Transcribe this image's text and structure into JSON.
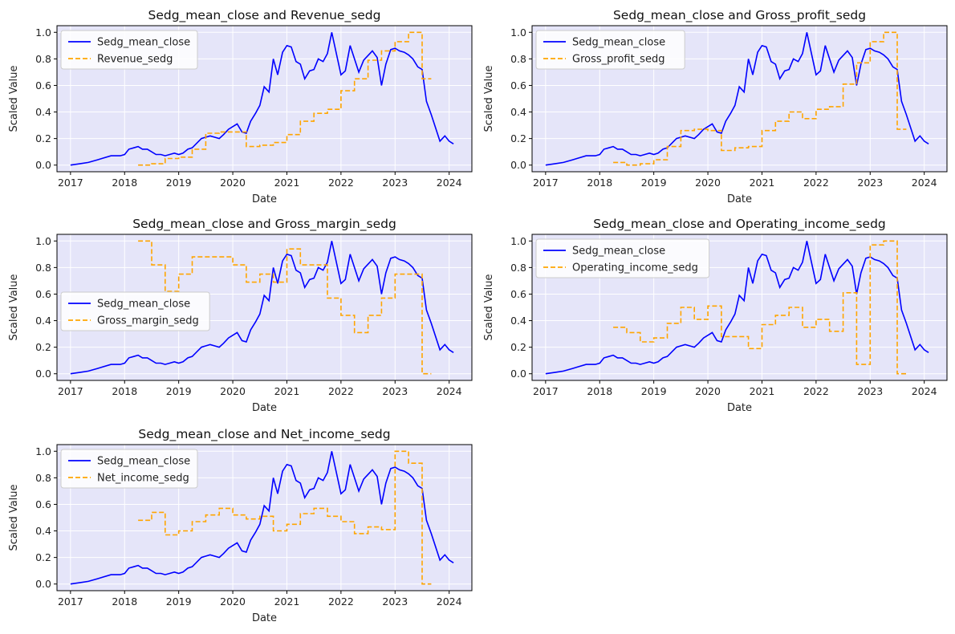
{
  "colors": {
    "blue": "#0000ff",
    "orange": "#ffa500",
    "axes_bg": "#e5e5f9",
    "grid": "#ffffff"
  },
  "x_ticks": [
    2017,
    2018,
    2019,
    2020,
    2021,
    2022,
    2023,
    2024
  ],
  "y_ticks": [
    "0.0",
    "0.2",
    "0.4",
    "0.6",
    "0.8",
    "1.0"
  ],
  "chart_data": [
    {
      "type": "line",
      "title": "Sedg_mean_close and Revenue_sedg",
      "xlabel": "Date",
      "ylabel": "Scaled Value",
      "xlim": [
        2016.75,
        2024.42
      ],
      "ylim": [
        -0.05,
        1.05
      ],
      "grid": true,
      "legend": "upper-left",
      "series": [
        {
          "name": "Sedg_mean_close",
          "style": "solid",
          "color": "#0000ff",
          "x": [
            2017.0,
            2017.17,
            2017.33,
            2017.5,
            2017.58,
            2017.75,
            2017.92,
            2018.0,
            2018.08,
            2018.17,
            2018.25,
            2018.33,
            2018.42,
            2018.5,
            2018.58,
            2018.67,
            2018.75,
            2018.92,
            2019.0,
            2019.08,
            2019.17,
            2019.25,
            2019.42,
            2019.58,
            2019.75,
            2019.83,
            2019.92,
            2020.08,
            2020.17,
            2020.25,
            2020.33,
            2020.42,
            2020.5,
            2020.58,
            2020.67,
            2020.75,
            2020.83,
            2020.92,
            2021.0,
            2021.08,
            2021.17,
            2021.25,
            2021.33,
            2021.42,
            2021.5,
            2021.58,
            2021.67,
            2021.75,
            2021.83,
            2021.92,
            2022.0,
            2022.08,
            2022.17,
            2022.33,
            2022.42,
            2022.58,
            2022.67,
            2022.75,
            2022.83,
            2022.92,
            2023.0,
            2023.08,
            2023.17,
            2023.25,
            2023.33,
            2023.42,
            2023.5,
            2023.58,
            2023.67,
            2023.83,
            2023.92,
            2024.0,
            2024.08
          ],
          "y": [
            0.0,
            0.01,
            0.02,
            0.04,
            0.05,
            0.07,
            0.07,
            0.08,
            0.12,
            0.13,
            0.14,
            0.12,
            0.12,
            0.1,
            0.08,
            0.08,
            0.07,
            0.09,
            0.08,
            0.09,
            0.12,
            0.13,
            0.2,
            0.22,
            0.2,
            0.23,
            0.27,
            0.31,
            0.25,
            0.24,
            0.33,
            0.39,
            0.45,
            0.59,
            0.55,
            0.8,
            0.68,
            0.85,
            0.9,
            0.89,
            0.78,
            0.76,
            0.65,
            0.71,
            0.72,
            0.8,
            0.78,
            0.84,
            1.0,
            0.83,
            0.68,
            0.71,
            0.9,
            0.7,
            0.79,
            0.86,
            0.81,
            0.6,
            0.76,
            0.87,
            0.88,
            0.86,
            0.85,
            0.83,
            0.8,
            0.74,
            0.72,
            0.48,
            0.38,
            0.18,
            0.22,
            0.18,
            0.16
          ]
        },
        {
          "name": "Revenue_sedg",
          "style": "dashed",
          "color": "#ffa500",
          "step": true,
          "x": [
            2018.25,
            2018.5,
            2018.75,
            2019.0,
            2019.25,
            2019.5,
            2019.75,
            2020.0,
            2020.25,
            2020.5,
            2020.75,
            2021.0,
            2021.25,
            2021.5,
            2021.75,
            2022.0,
            2022.25,
            2022.5,
            2022.75,
            2023.0,
            2023.25,
            2023.5,
            2023.67
          ],
          "y": [
            0.0,
            0.01,
            0.05,
            0.06,
            0.12,
            0.24,
            0.25,
            0.25,
            0.14,
            0.15,
            0.17,
            0.23,
            0.33,
            0.39,
            0.42,
            0.56,
            0.65,
            0.79,
            0.86,
            0.93,
            1.0,
            0.65,
            0.65
          ]
        }
      ]
    },
    {
      "type": "line",
      "title": "Sedg_mean_close and Gross_profit_sedg",
      "xlabel": "Date",
      "ylabel": "Scaled Value",
      "xlim": [
        2016.75,
        2024.42
      ],
      "ylim": [
        -0.05,
        1.05
      ],
      "grid": true,
      "legend": "upper-left",
      "series": [
        {
          "name": "Sedg_mean_close",
          "style": "solid",
          "color": "#0000ff",
          "ref": "sedg"
        },
        {
          "name": "Gross_profit_sedg",
          "style": "dashed",
          "color": "#ffa500",
          "step": true,
          "x": [
            2018.25,
            2018.5,
            2018.75,
            2019.0,
            2019.25,
            2019.5,
            2019.75,
            2020.0,
            2020.25,
            2020.5,
            2020.75,
            2021.0,
            2021.25,
            2021.5,
            2021.75,
            2022.0,
            2022.25,
            2022.5,
            2022.75,
            2023.0,
            2023.25,
            2023.5,
            2023.67
          ],
          "y": [
            0.02,
            0.0,
            0.01,
            0.04,
            0.14,
            0.26,
            0.27,
            0.26,
            0.11,
            0.13,
            0.14,
            0.26,
            0.33,
            0.4,
            0.35,
            0.42,
            0.44,
            0.61,
            0.77,
            0.93,
            1.0,
            0.27,
            0.27
          ]
        }
      ]
    },
    {
      "type": "line",
      "title": "Sedg_mean_close and Gross_margin_sedg",
      "xlabel": "Date",
      "ylabel": "Scaled Value",
      "xlim": [
        2016.75,
        2024.42
      ],
      "ylim": [
        -0.05,
        1.05
      ],
      "grid": true,
      "legend": "center-left",
      "series": [
        {
          "name": "Sedg_mean_close",
          "style": "solid",
          "color": "#0000ff",
          "ref": "sedg"
        },
        {
          "name": "Gross_margin_sedg",
          "style": "dashed",
          "color": "#ffa500",
          "step": true,
          "x": [
            2018.25,
            2018.5,
            2018.75,
            2019.0,
            2019.25,
            2019.5,
            2019.75,
            2020.0,
            2020.25,
            2020.5,
            2020.75,
            2021.0,
            2021.25,
            2021.5,
            2021.75,
            2022.0,
            2022.25,
            2022.5,
            2022.75,
            2023.0,
            2023.25,
            2023.5,
            2023.67
          ],
          "y": [
            1.0,
            0.82,
            0.62,
            0.75,
            0.88,
            0.88,
            0.88,
            0.82,
            0.69,
            0.75,
            0.69,
            0.94,
            0.82,
            0.82,
            0.57,
            0.44,
            0.31,
            0.44,
            0.57,
            0.75,
            0.75,
            0.0,
            0.0
          ]
        }
      ]
    },
    {
      "type": "line",
      "title": "Sedg_mean_close and Operating_income_sedg",
      "xlabel": "Date",
      "ylabel": "Scaled Value",
      "xlim": [
        2016.75,
        2024.42
      ],
      "ylim": [
        -0.05,
        1.05
      ],
      "grid": true,
      "legend": "upper-left",
      "series": [
        {
          "name": "Sedg_mean_close",
          "style": "solid",
          "color": "#0000ff",
          "ref": "sedg"
        },
        {
          "name": "Operating_income_sedg",
          "style": "dashed",
          "color": "#ffa500",
          "step": true,
          "x": [
            2018.25,
            2018.5,
            2018.75,
            2019.0,
            2019.25,
            2019.5,
            2019.75,
            2020.0,
            2020.25,
            2020.5,
            2020.75,
            2021.0,
            2021.25,
            2021.5,
            2021.75,
            2022.0,
            2022.25,
            2022.5,
            2022.75,
            2023.0,
            2023.25,
            2023.5,
            2023.67
          ],
          "y": [
            0.35,
            0.31,
            0.24,
            0.27,
            0.38,
            0.5,
            0.41,
            0.51,
            0.28,
            0.28,
            0.19,
            0.37,
            0.44,
            0.5,
            0.35,
            0.41,
            0.32,
            0.61,
            0.07,
            0.97,
            1.0,
            0.0,
            0.0
          ]
        }
      ]
    },
    {
      "type": "line",
      "title": "Sedg_mean_close and Net_income_sedg",
      "xlabel": "Date",
      "ylabel": "Scaled Value",
      "xlim": [
        2016.75,
        2024.42
      ],
      "ylim": [
        -0.05,
        1.05
      ],
      "grid": true,
      "legend": "upper-left",
      "series": [
        {
          "name": "Sedg_mean_close",
          "style": "solid",
          "color": "#0000ff",
          "ref": "sedg"
        },
        {
          "name": "Net_income_sedg",
          "style": "dashed",
          "color": "#ffa500",
          "step": true,
          "x": [
            2018.25,
            2018.5,
            2018.75,
            2019.0,
            2019.25,
            2019.5,
            2019.75,
            2020.0,
            2020.25,
            2020.5,
            2020.75,
            2021.0,
            2021.25,
            2021.5,
            2021.75,
            2022.0,
            2022.25,
            2022.5,
            2022.75,
            2023.0,
            2023.25,
            2023.5,
            2023.67
          ],
          "y": [
            0.48,
            0.54,
            0.37,
            0.4,
            0.47,
            0.52,
            0.57,
            0.52,
            0.49,
            0.51,
            0.4,
            0.45,
            0.53,
            0.57,
            0.51,
            0.47,
            0.38,
            0.43,
            0.41,
            1.0,
            0.91,
            0.0,
            0.0
          ]
        }
      ]
    }
  ]
}
